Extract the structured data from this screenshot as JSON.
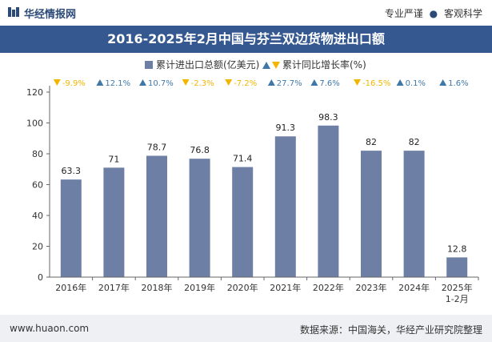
{
  "header": {
    "brand": "华经情报网",
    "slogan_left": "专业严谨",
    "slogan_sep": "●",
    "slogan_right": "客观科学"
  },
  "footer": {
    "site": "www.huaon.com",
    "source": "数据来源：中国海关，华经产业研究院整理"
  },
  "colors": {
    "bar": "#6e7fa6",
    "up": "#3f78a8",
    "down": "#f2b600",
    "title_bg": "#355890"
  },
  "chart_data": {
    "type": "bar",
    "title": "2016-2025年2月中国与芬兰双边货物进出口额",
    "categories": [
      "2016年",
      "2017年",
      "2018年",
      "2019年",
      "2020年",
      "2021年",
      "2022年",
      "2023年",
      "2024年",
      "2025年\n1-2月"
    ],
    "series": [
      {
        "name": "累计进出口总额(亿美元)",
        "values": [
          63.3,
          71,
          78.7,
          76.8,
          71.4,
          91.3,
          98.3,
          82,
          82,
          12.8
        ]
      }
    ],
    "value_labels": [
      "63.3",
      "71",
      "78.7",
      "76.8",
      "71.4",
      "91.3",
      "98.3",
      "82",
      "82",
      "12.8"
    ],
    "growth": {
      "name": "累计同比增长率(%)",
      "values": [
        -9.9,
        12.1,
        10.7,
        -2.3,
        -7.2,
        27.7,
        7.6,
        -16.5,
        0.1,
        1.6
      ],
      "labels": [
        "-9.9%",
        "12.1%",
        "10.7%",
        "-2.3%",
        "-7.2%",
        "27.7%",
        "7.6%",
        "-16.5%",
        "0.1%",
        "1.6%"
      ]
    },
    "ylim": [
      0,
      120
    ],
    "yticks": [
      0,
      20,
      40,
      60,
      80,
      100,
      120
    ],
    "xlabel": "",
    "ylabel": "",
    "grid": false,
    "legend": "top-center"
  }
}
